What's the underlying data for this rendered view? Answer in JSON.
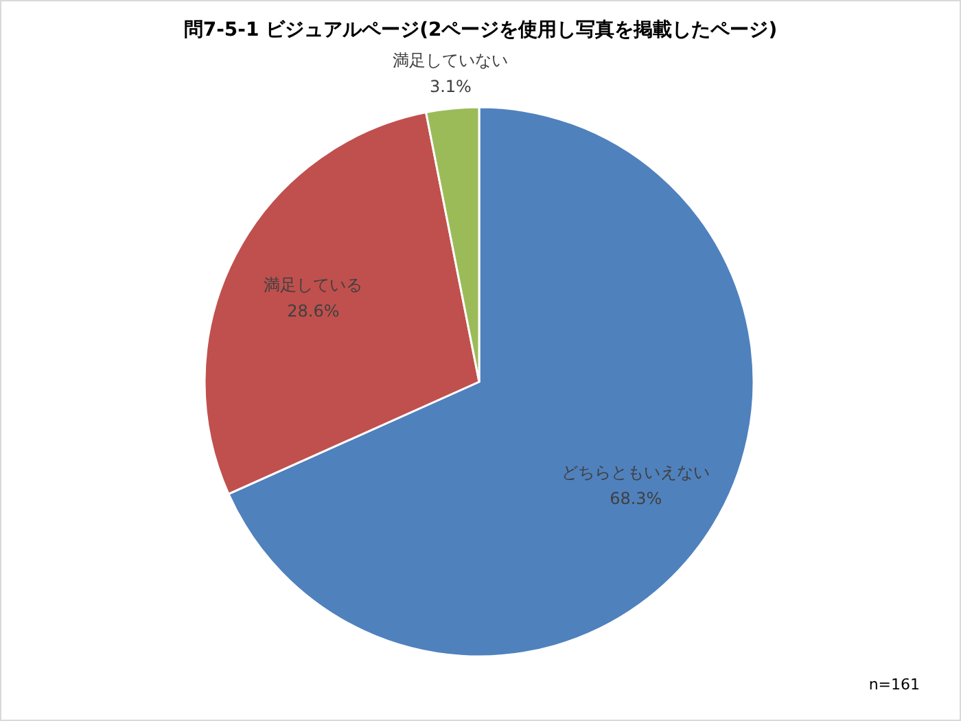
{
  "chart_data": {
    "type": "pie",
    "title": "問7-5-1 ビジュアルページ(2ページを使用し写真を掲載したページ)",
    "categories": [
      "どちらともいえない",
      "満足している",
      "満足していない"
    ],
    "values": [
      68.3,
      28.6,
      3.1
    ],
    "value_labels": [
      "68.3%",
      "28.6%",
      "3.1%"
    ],
    "colors": [
      "#4f81bd",
      "#c0504d",
      "#9bbb59"
    ],
    "annotations": [
      "n=161"
    ]
  }
}
